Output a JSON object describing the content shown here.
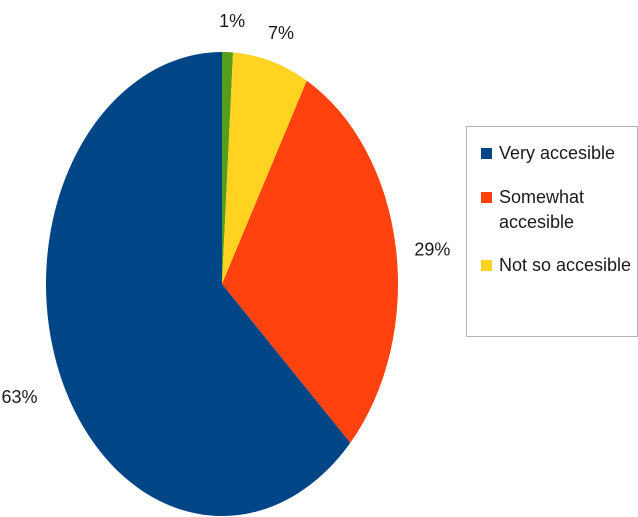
{
  "chart_data": {
    "type": "pie",
    "categories": [
      "Very accesible",
      "Somewhat accesible",
      "Not so accesible",
      ""
    ],
    "values": [
      63,
      29,
      7,
      1
    ],
    "labels": [
      "63%",
      "29%",
      "7%",
      "1%"
    ],
    "colors": [
      "#004586",
      "#ff420e",
      "#ffd320",
      "#579d1c"
    ],
    "legend": {
      "placement": "right",
      "entries": [
        {
          "label": "Very accesible",
          "color": "#004586"
        },
        {
          "label": "Somewhat accesible",
          "color": "#ff420e"
        },
        {
          "label": "Not so accesible",
          "color": "#ffd320"
        }
      ]
    }
  }
}
